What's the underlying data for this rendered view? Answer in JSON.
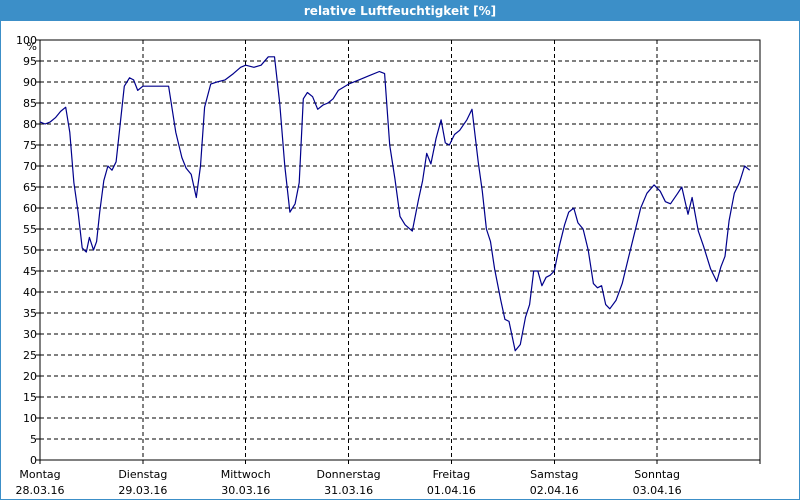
{
  "window": {
    "title": "relative Luftfeuchtigkeit [%]"
  },
  "colors": {
    "title_bar": "#3c8fc8",
    "title_text": "#ffffff",
    "line": "#00008b",
    "grid": "#000000",
    "background": "#ffffff"
  },
  "chart_data": {
    "type": "line",
    "title": "relative Luftfeuchtigkeit [%]",
    "ylabel": "%",
    "xlabel": "",
    "ylim": [
      0,
      100
    ],
    "xlim": [
      0,
      7
    ],
    "yticks": [
      0,
      5,
      10,
      15,
      20,
      25,
      30,
      35,
      40,
      45,
      50,
      55,
      60,
      65,
      70,
      75,
      80,
      85,
      90,
      95,
      100
    ],
    "grid": true,
    "grid_style": "dashed",
    "x_categories": [
      {
        "day": "Montag",
        "date": "28.03.16"
      },
      {
        "day": "Dienstag",
        "date": "29.03.16"
      },
      {
        "day": "Mittwoch",
        "date": "30.03.16"
      },
      {
        "day": "Donnerstag",
        "date": "31.03.16"
      },
      {
        "day": "Freitag",
        "date": "01.04.16"
      },
      {
        "day": "Samstag",
        "date": "02.04.16"
      },
      {
        "day": "Sonntag",
        "date": "03.04.16"
      }
    ],
    "series": [
      {
        "color": "#00008b",
        "points": [
          [
            0.0,
            80.5
          ],
          [
            0.05,
            80.0
          ],
          [
            0.1,
            80.5
          ],
          [
            0.15,
            81.5
          ],
          [
            0.2,
            83.0
          ],
          [
            0.25,
            84.0
          ],
          [
            0.29,
            78.0
          ],
          [
            0.33,
            66.0
          ],
          [
            0.37,
            59.0
          ],
          [
            0.41,
            50.5
          ],
          [
            0.45,
            49.5
          ],
          [
            0.48,
            53.0
          ],
          [
            0.52,
            50.0
          ],
          [
            0.55,
            52.0
          ],
          [
            0.58,
            59.0
          ],
          [
            0.62,
            66.5
          ],
          [
            0.66,
            70.0
          ],
          [
            0.7,
            69.0
          ],
          [
            0.74,
            71.0
          ],
          [
            0.78,
            80.0
          ],
          [
            0.82,
            89.0
          ],
          [
            0.87,
            91.0
          ],
          [
            0.91,
            90.5
          ],
          [
            0.95,
            88.0
          ],
          [
            1.0,
            89.0
          ],
          [
            1.1,
            89.0
          ],
          [
            1.18,
            89.0
          ],
          [
            1.25,
            89.0
          ],
          [
            1.32,
            78.0
          ],
          [
            1.38,
            72.0
          ],
          [
            1.42,
            69.5
          ],
          [
            1.47,
            68.0
          ],
          [
            1.52,
            62.5
          ],
          [
            1.56,
            70.0
          ],
          [
            1.6,
            84.0
          ],
          [
            1.66,
            89.5
          ],
          [
            1.72,
            90.0
          ],
          [
            1.8,
            90.5
          ],
          [
            1.88,
            92.0
          ],
          [
            1.95,
            93.5
          ],
          [
            2.0,
            94.0
          ],
          [
            2.08,
            93.5
          ],
          [
            2.15,
            94.0
          ],
          [
            2.22,
            96.0
          ],
          [
            2.28,
            96.0
          ],
          [
            2.33,
            85.0
          ],
          [
            2.38,
            70.0
          ],
          [
            2.43,
            59.0
          ],
          [
            2.48,
            61.0
          ],
          [
            2.52,
            66.0
          ],
          [
            2.56,
            86.0
          ],
          [
            2.6,
            87.5
          ],
          [
            2.65,
            86.5
          ],
          [
            2.7,
            83.5
          ],
          [
            2.75,
            84.5
          ],
          [
            2.8,
            85.0
          ],
          [
            2.85,
            86.0
          ],
          [
            2.9,
            88.0
          ],
          [
            3.0,
            89.5
          ],
          [
            3.1,
            90.5
          ],
          [
            3.2,
            91.5
          ],
          [
            3.3,
            92.5
          ],
          [
            3.35,
            92.0
          ],
          [
            3.4,
            75.0
          ],
          [
            3.45,
            67.0
          ],
          [
            3.5,
            58.0
          ],
          [
            3.55,
            56.0
          ],
          [
            3.62,
            54.5
          ],
          [
            3.68,
            62.0
          ],
          [
            3.72,
            66.5
          ],
          [
            3.76,
            73.0
          ],
          [
            3.8,
            70.5
          ],
          [
            3.85,
            76.5
          ],
          [
            3.9,
            81.0
          ],
          [
            3.94,
            75.5
          ],
          [
            3.98,
            75.0
          ],
          [
            4.03,
            77.5
          ],
          [
            4.08,
            78.5
          ],
          [
            4.15,
            81.0
          ],
          [
            4.2,
            83.5
          ],
          [
            4.26,
            71.0
          ],
          [
            4.3,
            64.0
          ],
          [
            4.34,
            55.0
          ],
          [
            4.38,
            52.0
          ],
          [
            4.42,
            45.5
          ],
          [
            4.48,
            38.0
          ],
          [
            4.52,
            33.5
          ],
          [
            4.56,
            33.0
          ],
          [
            4.62,
            26.0
          ],
          [
            4.67,
            27.5
          ],
          [
            4.72,
            34.0
          ],
          [
            4.76,
            37.0
          ],
          [
            4.8,
            45.0
          ],
          [
            4.84,
            45.0
          ],
          [
            4.88,
            41.5
          ],
          [
            4.92,
            43.5
          ],
          [
            4.96,
            44.0
          ],
          [
            5.0,
            45.0
          ],
          [
            5.05,
            51.0
          ],
          [
            5.1,
            56.0
          ],
          [
            5.14,
            59.0
          ],
          [
            5.19,
            60.0
          ],
          [
            5.23,
            56.5
          ],
          [
            5.28,
            55.0
          ],
          [
            5.33,
            50.0
          ],
          [
            5.38,
            42.0
          ],
          [
            5.42,
            41.0
          ],
          [
            5.46,
            41.5
          ],
          [
            5.5,
            37.0
          ],
          [
            5.54,
            36.0
          ],
          [
            5.6,
            38.0
          ],
          [
            5.66,
            42.0
          ],
          [
            5.72,
            48.0
          ],
          [
            5.78,
            54.0
          ],
          [
            5.84,
            60.0
          ],
          [
            5.9,
            63.5
          ],
          [
            5.97,
            65.5
          ],
          [
            6.03,
            64.0
          ],
          [
            6.08,
            61.5
          ],
          [
            6.13,
            61.0
          ],
          [
            6.2,
            63.5
          ],
          [
            6.24,
            65.0
          ],
          [
            6.3,
            58.5
          ],
          [
            6.34,
            62.5
          ],
          [
            6.4,
            54.5
          ],
          [
            6.45,
            51.0
          ],
          [
            6.52,
            45.5
          ],
          [
            6.58,
            42.5
          ],
          [
            6.62,
            46.0
          ],
          [
            6.66,
            48.5
          ],
          [
            6.7,
            57.0
          ],
          [
            6.75,
            63.5
          ],
          [
            6.8,
            66.0
          ],
          [
            6.85,
            70.0
          ],
          [
            6.9,
            69.0
          ]
        ]
      }
    ]
  }
}
